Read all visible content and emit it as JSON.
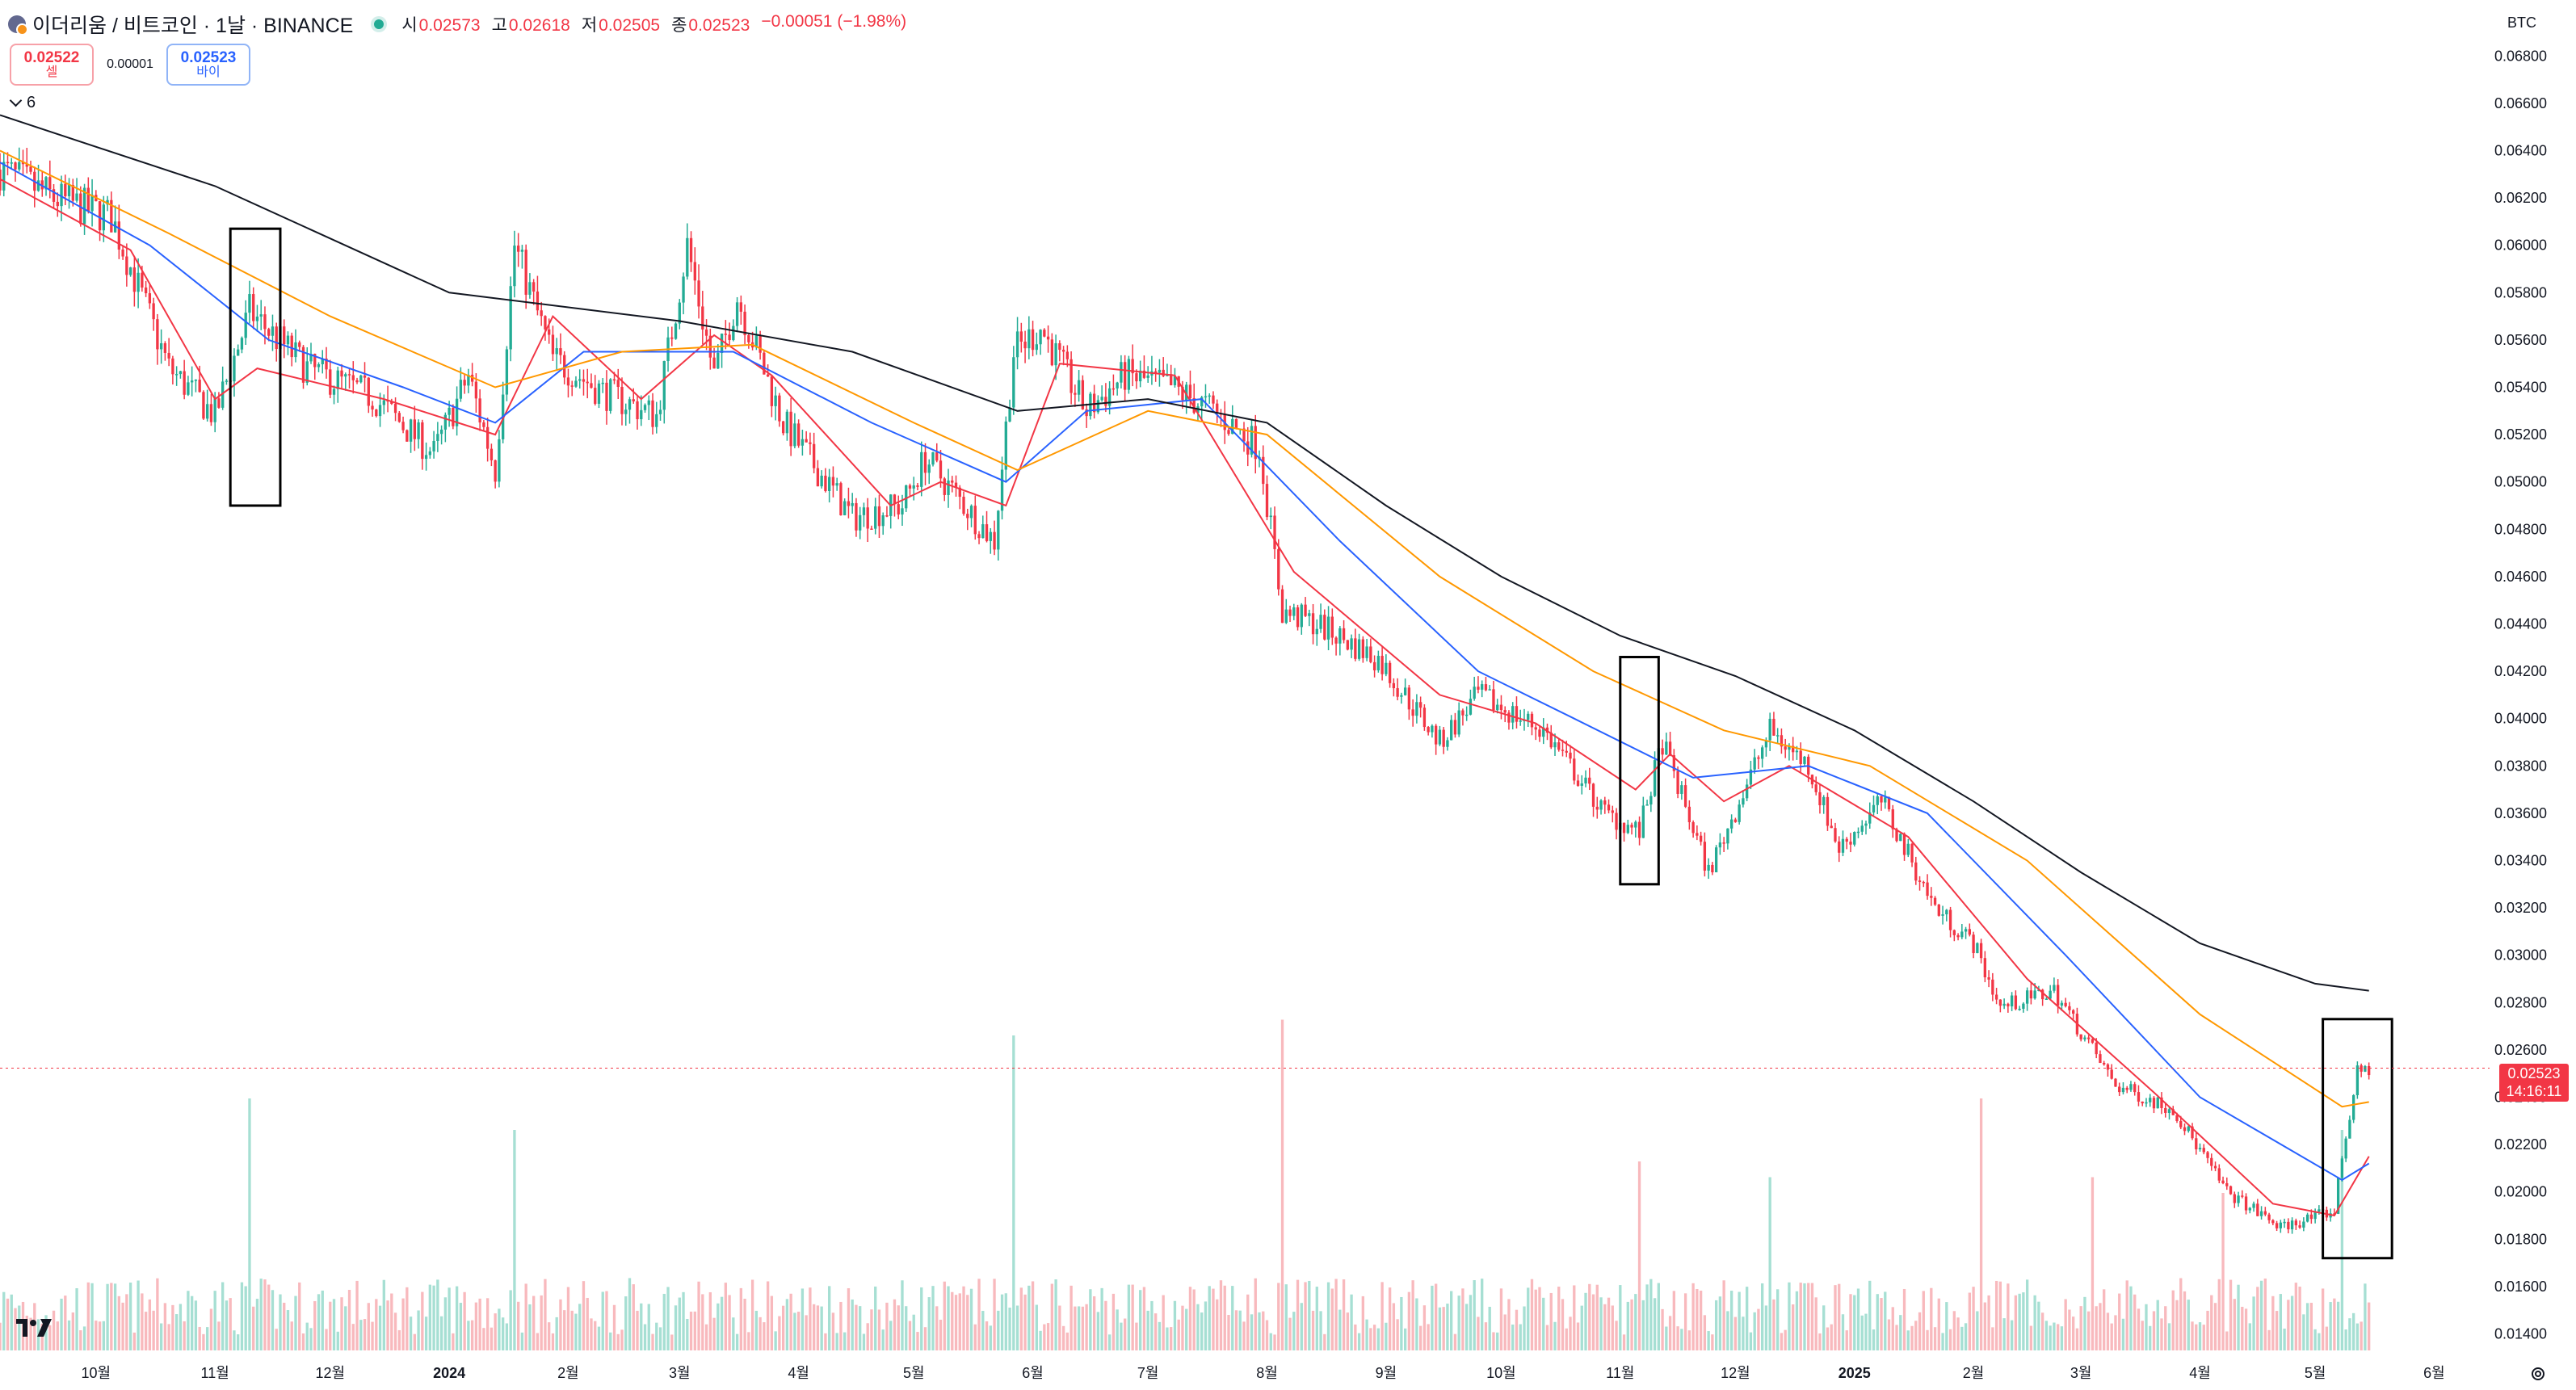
{
  "header": {
    "symbol_title": "이더리움 / 비트코인 · 1날 · BINANCE",
    "ohlc": [
      {
        "label": "시",
        "value": "0.02573"
      },
      {
        "label": "고",
        "value": "0.02618"
      },
      {
        "label": "저",
        "value": "0.02505"
      },
      {
        "label": "종",
        "value": "0.02523"
      }
    ],
    "change": "−0.00051 (−1.98%)"
  },
  "trade": {
    "sell_price": "0.02522",
    "sell_label": "셀",
    "spread": "0.00001",
    "buy_price": "0.02523",
    "buy_label": "바이"
  },
  "indicators_toggle": {
    "count": "6"
  },
  "currency": "BTC",
  "last_price": {
    "value": "0.02523",
    "countdown": "14:16:11"
  },
  "colors": {
    "up": "#22ab94",
    "down": "#f23645",
    "ema_fast": "#f23645",
    "ema_mid": "#2962ff",
    "ema_slow": "#ff9800",
    "ema_long": "#131722",
    "volume_up": "#a6dfd3",
    "volume_down": "#f8b9bd",
    "highlight_box": "#000000"
  },
  "chart_data": {
    "type": "candlestick",
    "pair": "ETH/BTC",
    "interval": "1D",
    "y_axis": {
      "ticks": [
        "0.06800",
        "0.06600",
        "0.06400",
        "0.06200",
        "0.06000",
        "0.05800",
        "0.05600",
        "0.05400",
        "0.05200",
        "0.05000",
        "0.04800",
        "0.04600",
        "0.04400",
        "0.04200",
        "0.04000",
        "0.03800",
        "0.03600",
        "0.03400",
        "0.03200",
        "0.03000",
        "0.02800",
        "0.02600",
        "0.02400",
        "0.02200",
        "0.02000",
        "0.01800",
        "0.01600",
        "0.01400"
      ],
      "ylim": [
        0.0133,
        0.069
      ]
    },
    "x_axis": {
      "ticks": [
        {
          "label": "10월",
          "date": "2023-10-01"
        },
        {
          "label": "11월",
          "date": "2023-11-01"
        },
        {
          "label": "12월",
          "date": "2023-12-01"
        },
        {
          "label": "2024",
          "date": "2024-01-01"
        },
        {
          "label": "2월",
          "date": "2024-02-01"
        },
        {
          "label": "3월",
          "date": "2024-03-01"
        },
        {
          "label": "4월",
          "date": "2024-04-01"
        },
        {
          "label": "5월",
          "date": "2024-05-01"
        },
        {
          "label": "6월",
          "date": "2024-06-01"
        },
        {
          "label": "7월",
          "date": "2024-07-01"
        },
        {
          "label": "8월",
          "date": "2024-08-01"
        },
        {
          "label": "9월",
          "date": "2024-09-01"
        },
        {
          "label": "10월",
          "date": "2024-10-01"
        },
        {
          "label": "11월",
          "date": "2024-11-01"
        },
        {
          "label": "12월",
          "date": "2024-12-01"
        },
        {
          "label": "2025",
          "date": "2025-01-01"
        },
        {
          "label": "2월",
          "date": "2025-02-01"
        },
        {
          "label": "3월",
          "date": "2025-03-01"
        },
        {
          "label": "4월",
          "date": "2025-04-01"
        },
        {
          "label": "5월",
          "date": "2025-05-01"
        },
        {
          "label": "6월",
          "date": "2025-06-01"
        }
      ],
      "xlim": [
        "2023-09-06",
        "2025-06-15"
      ]
    },
    "price_keypoints": [
      {
        "date": "2023-09-06",
        "value": 0.0632
      },
      {
        "date": "2023-09-20",
        "value": 0.062
      },
      {
        "date": "2023-10-05",
        "value": 0.0612
      },
      {
        "date": "2023-10-20",
        "value": 0.0548
      },
      {
        "date": "2023-11-01",
        "value": 0.0528
      },
      {
        "date": "2023-11-10",
        "value": 0.0572
      },
      {
        "date": "2023-11-25",
        "value": 0.0548
      },
      {
        "date": "2023-12-12",
        "value": 0.0536
      },
      {
        "date": "2023-12-28",
        "value": 0.0512
      },
      {
        "date": "2024-01-06",
        "value": 0.0545
      },
      {
        "date": "2024-01-13",
        "value": 0.0505
      },
      {
        "date": "2024-01-18",
        "value": 0.06
      },
      {
        "date": "2024-01-28",
        "value": 0.0552
      },
      {
        "date": "2024-02-10",
        "value": 0.0538
      },
      {
        "date": "2024-02-24",
        "value": 0.0528
      },
      {
        "date": "2024-03-03",
        "value": 0.06
      },
      {
        "date": "2024-03-10",
        "value": 0.0545
      },
      {
        "date": "2024-03-16",
        "value": 0.0578
      },
      {
        "date": "2024-03-28",
        "value": 0.0525
      },
      {
        "date": "2024-04-15",
        "value": 0.0485
      },
      {
        "date": "2024-04-28",
        "value": 0.049
      },
      {
        "date": "2024-05-04",
        "value": 0.051
      },
      {
        "date": "2024-05-22",
        "value": 0.0475
      },
      {
        "date": "2024-05-27",
        "value": 0.0555
      },
      {
        "date": "2024-06-03",
        "value": 0.0565
      },
      {
        "date": "2024-06-15",
        "value": 0.053
      },
      {
        "date": "2024-06-25",
        "value": 0.0545
      },
      {
        "date": "2024-07-07",
        "value": 0.054
      },
      {
        "date": "2024-07-18",
        "value": 0.053
      },
      {
        "date": "2024-07-30",
        "value": 0.0515
      },
      {
        "date": "2024-08-05",
        "value": 0.0445
      },
      {
        "date": "2024-08-14",
        "value": 0.044
      },
      {
        "date": "2024-08-30",
        "value": 0.0425
      },
      {
        "date": "2024-09-15",
        "value": 0.039
      },
      {
        "date": "2024-09-25",
        "value": 0.041
      },
      {
        "date": "2024-10-12",
        "value": 0.0395
      },
      {
        "date": "2024-10-28",
        "value": 0.036
      },
      {
        "date": "2024-11-06",
        "value": 0.0352
      },
      {
        "date": "2024-11-12",
        "value": 0.039
      },
      {
        "date": "2024-11-24",
        "value": 0.0335
      },
      {
        "date": "2024-12-10",
        "value": 0.0395
      },
      {
        "date": "2024-12-20",
        "value": 0.038
      },
      {
        "date": "2024-12-28",
        "value": 0.0345
      },
      {
        "date": "2025-01-08",
        "value": 0.0365
      },
      {
        "date": "2025-01-22",
        "value": 0.032
      },
      {
        "date": "2025-02-01",
        "value": 0.0305
      },
      {
        "date": "2025-02-08",
        "value": 0.0278
      },
      {
        "date": "2025-02-22",
        "value": 0.0285
      },
      {
        "date": "2025-03-10",
        "value": 0.0245
      },
      {
        "date": "2025-03-25",
        "value": 0.0235
      },
      {
        "date": "2025-04-08",
        "value": 0.02
      },
      {
        "date": "2025-04-22",
        "value": 0.0185
      },
      {
        "date": "2025-05-06",
        "value": 0.0192
      },
      {
        "date": "2025-05-08",
        "value": 0.0215
      },
      {
        "date": "2025-05-12",
        "value": 0.025
      },
      {
        "date": "2025-05-15",
        "value": 0.0252
      }
    ],
    "moving_averages": [
      {
        "color_key": "ema_fast",
        "points": [
          {
            "date": "2023-09-06",
            "value": 0.0628
          },
          {
            "date": "2023-10-10",
            "value": 0.0598
          },
          {
            "date": "2023-11-01",
            "value": 0.0535
          },
          {
            "date": "2023-11-12",
            "value": 0.0548
          },
          {
            "date": "2023-12-15",
            "value": 0.0535
          },
          {
            "date": "2024-01-13",
            "value": 0.052
          },
          {
            "date": "2024-01-28",
            "value": 0.057
          },
          {
            "date": "2024-02-20",
            "value": 0.0535
          },
          {
            "date": "2024-03-10",
            "value": 0.0562
          },
          {
            "date": "2024-03-25",
            "value": 0.0545
          },
          {
            "date": "2024-04-25",
            "value": 0.049
          },
          {
            "date": "2024-05-08",
            "value": 0.05
          },
          {
            "date": "2024-05-25",
            "value": 0.049
          },
          {
            "date": "2024-06-08",
            "value": 0.055
          },
          {
            "date": "2024-07-08",
            "value": 0.0545
          },
          {
            "date": "2024-08-08",
            "value": 0.0462
          },
          {
            "date": "2024-09-15",
            "value": 0.041
          },
          {
            "date": "2024-10-10",
            "value": 0.0398
          },
          {
            "date": "2024-11-05",
            "value": 0.037
          },
          {
            "date": "2024-11-14",
            "value": 0.0385
          },
          {
            "date": "2024-11-28",
            "value": 0.0365
          },
          {
            "date": "2024-12-15",
            "value": 0.038
          },
          {
            "date": "2025-01-15",
            "value": 0.035
          },
          {
            "date": "2025-02-15",
            "value": 0.029
          },
          {
            "date": "2025-03-20",
            "value": 0.0242
          },
          {
            "date": "2025-04-20",
            "value": 0.0195
          },
          {
            "date": "2025-05-06",
            "value": 0.019
          },
          {
            "date": "2025-05-15",
            "value": 0.0215
          }
        ]
      },
      {
        "color_key": "ema_mid",
        "points": [
          {
            "date": "2023-09-06",
            "value": 0.0635
          },
          {
            "date": "2023-10-15",
            "value": 0.06
          },
          {
            "date": "2023-11-15",
            "value": 0.056
          },
          {
            "date": "2023-12-20",
            "value": 0.054
          },
          {
            "date": "2024-01-13",
            "value": 0.0525
          },
          {
            "date": "2024-02-05",
            "value": 0.0555
          },
          {
            "date": "2024-03-15",
            "value": 0.0555
          },
          {
            "date": "2024-04-20",
            "value": 0.0525
          },
          {
            "date": "2024-05-25",
            "value": 0.05
          },
          {
            "date": "2024-06-15",
            "value": 0.053
          },
          {
            "date": "2024-07-15",
            "value": 0.0535
          },
          {
            "date": "2024-08-20",
            "value": 0.0475
          },
          {
            "date": "2024-09-25",
            "value": 0.042
          },
          {
            "date": "2024-10-20",
            "value": 0.04
          },
          {
            "date": "2024-11-20",
            "value": 0.0375
          },
          {
            "date": "2024-12-20",
            "value": 0.038
          },
          {
            "date": "2025-01-20",
            "value": 0.036
          },
          {
            "date": "2025-02-25",
            "value": 0.03
          },
          {
            "date": "2025-04-01",
            "value": 0.024
          },
          {
            "date": "2025-05-08",
            "value": 0.0205
          },
          {
            "date": "2025-05-15",
            "value": 0.0212
          }
        ]
      },
      {
        "color_key": "ema_slow",
        "points": [
          {
            "date": "2023-09-06",
            "value": 0.064
          },
          {
            "date": "2023-10-20",
            "value": 0.0605
          },
          {
            "date": "2023-12-01",
            "value": 0.057
          },
          {
            "date": "2024-01-13",
            "value": 0.054
          },
          {
            "date": "2024-02-15",
            "value": 0.0555
          },
          {
            "date": "2024-03-20",
            "value": 0.0558
          },
          {
            "date": "2024-05-01",
            "value": 0.0525
          },
          {
            "date": "2024-05-28",
            "value": 0.0505
          },
          {
            "date": "2024-07-01",
            "value": 0.053
          },
          {
            "date": "2024-08-01",
            "value": 0.052
          },
          {
            "date": "2024-09-15",
            "value": 0.046
          },
          {
            "date": "2024-10-25",
            "value": 0.042
          },
          {
            "date": "2024-11-28",
            "value": 0.0395
          },
          {
            "date": "2025-01-05",
            "value": 0.038
          },
          {
            "date": "2025-02-15",
            "value": 0.034
          },
          {
            "date": "2025-04-01",
            "value": 0.0275
          },
          {
            "date": "2025-05-08",
            "value": 0.0236
          },
          {
            "date": "2025-05-15",
            "value": 0.0238
          }
        ]
      },
      {
        "color_key": "ema_long",
        "points": [
          {
            "date": "2023-09-06",
            "value": 0.0655
          },
          {
            "date": "2023-11-01",
            "value": 0.0625
          },
          {
            "date": "2024-01-01",
            "value": 0.058
          },
          {
            "date": "2024-03-01",
            "value": 0.0568
          },
          {
            "date": "2024-04-15",
            "value": 0.0555
          },
          {
            "date": "2024-05-28",
            "value": 0.053
          },
          {
            "date": "2024-07-01",
            "value": 0.0535
          },
          {
            "date": "2024-08-01",
            "value": 0.0525
          },
          {
            "date": "2024-09-01",
            "value": 0.049
          },
          {
            "date": "2024-10-01",
            "value": 0.046
          },
          {
            "date": "2024-11-01",
            "value": 0.0435
          },
          {
            "date": "2024-12-01",
            "value": 0.0418
          },
          {
            "date": "2025-01-01",
            "value": 0.0395
          },
          {
            "date": "2025-02-01",
            "value": 0.0365
          },
          {
            "date": "2025-03-01",
            "value": 0.0335
          },
          {
            "date": "2025-04-01",
            "value": 0.0305
          },
          {
            "date": "2025-05-01",
            "value": 0.0288
          },
          {
            "date": "2025-05-15",
            "value": 0.0285
          }
        ]
      }
    ],
    "volume_spikes": [
      {
        "date": "2023-11-10",
        "value": 0.8
      },
      {
        "date": "2024-01-18",
        "value": 0.7
      },
      {
        "date": "2024-05-27",
        "value": 1.0
      },
      {
        "date": "2024-08-05",
        "value": 1.05
      },
      {
        "date": "2024-11-06",
        "value": 0.6
      },
      {
        "date": "2024-12-10",
        "value": 0.55
      },
      {
        "date": "2025-02-03",
        "value": 0.8
      },
      {
        "date": "2025-03-04",
        "value": 0.55
      },
      {
        "date": "2025-04-07",
        "value": 0.5
      },
      {
        "date": "2025-05-08",
        "value": 0.7
      }
    ],
    "highlight_boxes": [
      {
        "from": "2023-11-05",
        "to": "2023-11-18",
        "ymin": 0.049,
        "ymax": 0.0607
      },
      {
        "from": "2024-11-01",
        "to": "2024-11-11",
        "ymin": 0.033,
        "ymax": 0.0426
      },
      {
        "from": "2025-05-03",
        "to": "2025-05-21",
        "ymin": 0.0172,
        "ymax": 0.0273
      }
    ],
    "current_price": 0.02523
  }
}
